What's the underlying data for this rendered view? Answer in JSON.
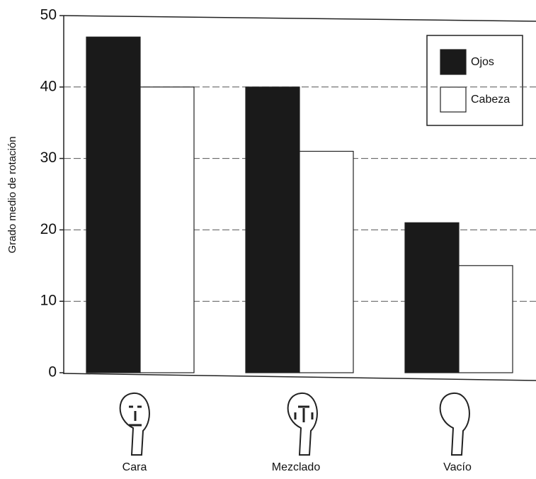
{
  "chart_data": {
    "type": "bar",
    "y_label": "Grado medio de rotación",
    "categories": [
      "Cara",
      "Mezclado",
      "Vacío"
    ],
    "series": [
      {
        "name": "Ojos",
        "color": "#1a1a1a",
        "values": [
          47,
          40,
          21
        ]
      },
      {
        "name": "Cabeza",
        "color": "#ffffff",
        "values": [
          40,
          31,
          15
        ]
      }
    ],
    "ylim": [
      0,
      50
    ],
    "yticks": [
      0,
      10,
      20,
      30,
      40,
      50
    ],
    "grid": true,
    "legend": "upper right"
  }
}
